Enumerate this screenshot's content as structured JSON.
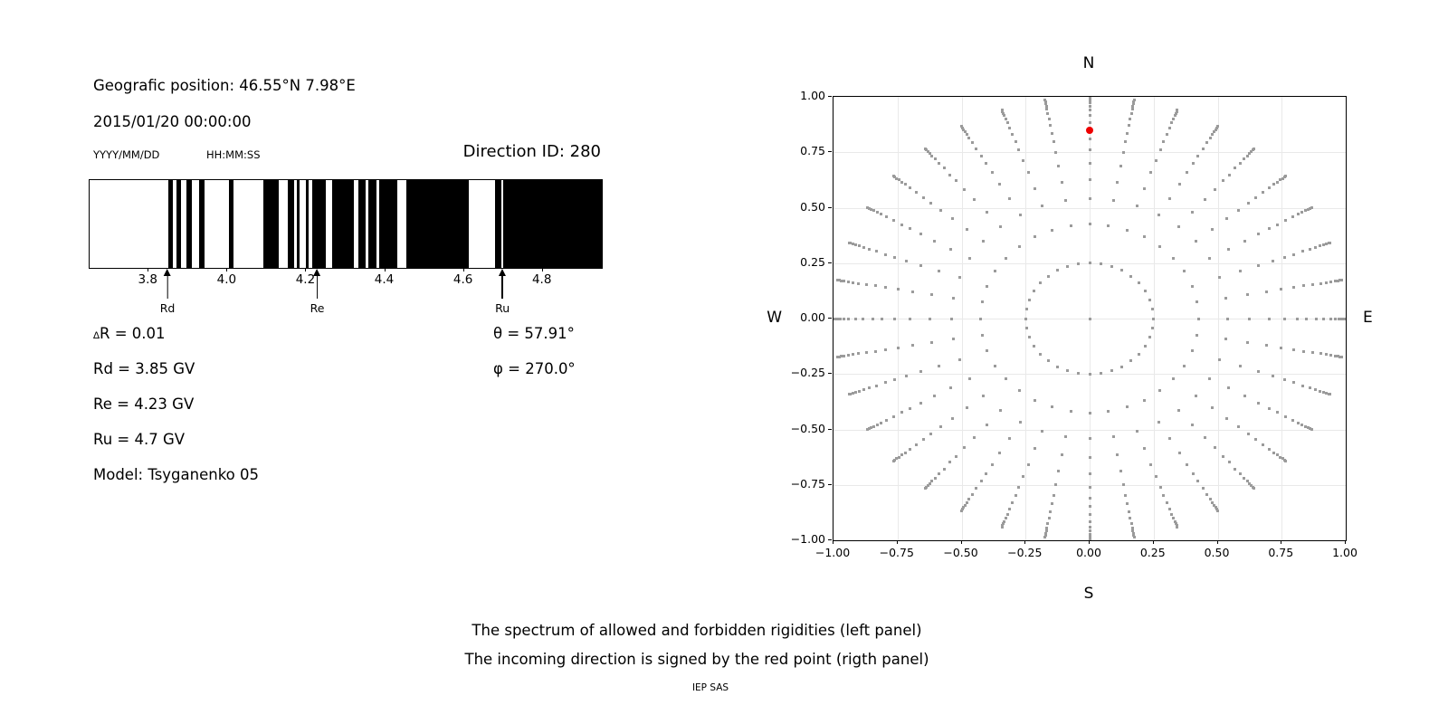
{
  "header": {
    "geo_position": "Geografic position: 46.55°N 7.98°E",
    "datetime": "2015/01/20 00:00:00",
    "date_hint": "YYYY/MM/DD",
    "time_hint": "HH:MM:SS",
    "direction_id": "Direction ID: 280"
  },
  "info": {
    "delta_symbol": "∆",
    "delta_rest": "R = 0.01",
    "rd": "Rd = 3.85 GV",
    "re": "Re = 4.23 GV",
    "ru": "Ru = 4.7 GV",
    "model": "Model: Tsyganenko 05",
    "theta": "θ = 57.91°",
    "phi": "φ = 270.0°"
  },
  "captions": {
    "line1": "The spectrum of allowed and forbidden rigidities (left panel)",
    "line2": "The incoming direction is signed by the red point (rigth panel)",
    "credit": "IEP SAS"
  },
  "chart_data": [
    {
      "id": "rigidity-spectrum",
      "type": "barcode",
      "description": "Allowed (black) and forbidden (white) rigidities vs rigidity in GV",
      "xlim": [
        3.65,
        4.95
      ],
      "unit": "GV",
      "ticks": [
        3.8,
        4.0,
        4.2,
        4.4,
        4.6,
        4.8
      ],
      "tick_labels": [
        "3.8",
        "4.0",
        "4.2",
        "4.4",
        "4.6",
        "4.8"
      ],
      "allowed_color": "#000000",
      "forbidden_color": "#ffffff",
      "allowed_bands": [
        [
          3.85,
          3.862
        ],
        [
          3.87,
          3.881
        ],
        [
          3.896,
          3.91
        ],
        [
          3.929,
          3.942
        ],
        [
          4.003,
          4.016
        ],
        [
          4.09,
          4.129
        ],
        [
          4.152,
          4.168
        ],
        [
          4.176,
          4.184
        ],
        [
          4.199,
          4.206
        ],
        [
          4.216,
          4.249
        ],
        [
          4.265,
          4.32
        ],
        [
          4.333,
          4.35
        ],
        [
          4.358,
          4.377
        ],
        [
          4.385,
          4.432
        ],
        [
          4.454,
          4.612
        ],
        [
          4.68,
          4.694
        ],
        [
          4.7,
          4.95
        ]
      ],
      "markers": [
        {
          "label": "Rd",
          "value": 3.85
        },
        {
          "label": "Re",
          "value": 4.23
        },
        {
          "label": "Ru",
          "value": 4.7
        }
      ]
    },
    {
      "id": "incoming-directions",
      "type": "scatter",
      "description": "Grid of incoming directions; red point marks the incoming direction",
      "xlim": [
        -1.0,
        1.0
      ],
      "ylim": [
        -1.0,
        1.0
      ],
      "grid": true,
      "grid_step": 0.25,
      "xtick_labels": [
        "−1.00",
        "−0.75",
        "−0.50",
        "−0.25",
        "0.00",
        "0.25",
        "0.50",
        "0.75",
        "1.00"
      ],
      "ytick_labels": [
        "1.00",
        "0.75",
        "0.50",
        "0.25",
        "0.00",
        "−0.25",
        "−0.50",
        "−0.75",
        "−1.00"
      ],
      "compass": {
        "top": "N",
        "bottom": "S",
        "left": "W",
        "right": "E"
      },
      "azimuth_step_deg": 10,
      "ring_radii": [
        0.25,
        0.425,
        0.54,
        0.625,
        0.7,
        0.76,
        0.81,
        0.847,
        0.885,
        0.915,
        0.94,
        0.958,
        0.973,
        0.984,
        0.993,
        1.0
      ],
      "center_point": {
        "x": 0.0,
        "y": 0.0
      },
      "point_color": "#9b9b9b",
      "red_point": {
        "x": 0.0,
        "y": 0.847,
        "color": "#ee0000"
      }
    }
  ]
}
